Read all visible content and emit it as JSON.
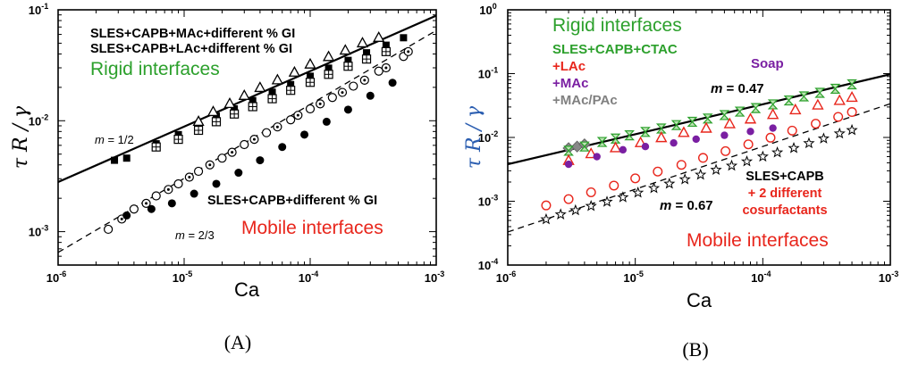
{
  "chart_data": [
    {
      "type": "scatter",
      "panel_label": "(A)",
      "xlabel": "Ca",
      "ylabel": "τ R / γ",
      "xscale": "log",
      "yscale": "log",
      "xlim": [
        1e-06,
        0.001
      ],
      "ylim": [
        0.0005,
        0.1
      ],
      "x_ticks": [
        {
          "base": "10",
          "exp": "-6",
          "value": 1e-06
        },
        {
          "base": "10",
          "exp": "-5",
          "value": 1e-05
        },
        {
          "base": "10",
          "exp": "-4",
          "value": 0.0001
        },
        {
          "base": "10",
          "exp": "-3",
          "value": 0.001
        }
      ],
      "y_ticks": [
        {
          "base": "10",
          "exp": "-3",
          "value": 0.001
        },
        {
          "base": "10",
          "exp": "-2",
          "value": 0.01
        },
        {
          "base": "10",
          "exp": "-1",
          "value": 0.1
        }
      ],
      "annotations": {
        "legend_line_1": "SLES+CAPB+MAc+different % GI",
        "legend_line_2": "SLES+CAPB+LAc+different % GI",
        "rigid": "Rigid interfaces",
        "mobile_series": "SLES+CAPB+different % GI",
        "mobile": "Mobile interfaces",
        "slope_rigid_m": "m",
        "slope_rigid_eq": "= 1/2",
        "slope_mobile_m": "m",
        "slope_mobile_eq": "= 2/3"
      },
      "lines": [
        {
          "label": "m = 1/2",
          "style": "solid",
          "slope": 0.5,
          "x_range": [
            1e-06,
            0.001
          ],
          "y_at_1e-6": 0.0028
        },
        {
          "label": "m = 2/3",
          "style": "dashed",
          "slope": 0.667,
          "x_range": [
            1e-06,
            0.001
          ],
          "y_at_1e-6": 0.00065
        }
      ],
      "series": [
        {
          "marker": "square-filled",
          "x": [
            2.8e-06,
            3.5e-06,
            6e-06,
            9e-06,
            1.3e-05,
            1.8e-05,
            2.5e-05,
            3.5e-05,
            5e-05,
            7e-05,
            0.0001,
            0.00014,
            0.0002,
            0.00028,
            0.0004,
            0.00055
          ],
          "y": [
            0.0044,
            0.0046,
            0.0062,
            0.0075,
            0.0091,
            0.011,
            0.0128,
            0.0152,
            0.0181,
            0.0212,
            0.0252,
            0.0298,
            0.035,
            0.041,
            0.048,
            0.056
          ]
        },
        {
          "marker": "square-open",
          "x": [
            6e-06,
            9e-06,
            1.3e-05,
            1.8e-05,
            2.5e-05,
            3.5e-05,
            5e-05,
            7e-05,
            0.0001,
            0.00014,
            0.0002,
            0.00028,
            0.0004
          ],
          "y": [
            0.0058,
            0.0068,
            0.0082,
            0.0098,
            0.0115,
            0.0134,
            0.0158,
            0.0188,
            0.0222,
            0.0262,
            0.031,
            0.036,
            0.042
          ]
        },
        {
          "marker": "triangle-open",
          "x": [
            1.3e-05,
            1.7e-05,
            2.3e-05,
            3e-05,
            4e-05,
            5.5e-05,
            7.5e-05,
            0.0001,
            0.00014,
            0.00019,
            0.00026,
            0.00035
          ],
          "y": [
            0.0098,
            0.012,
            0.0142,
            0.0168,
            0.0198,
            0.0232,
            0.0272,
            0.0322,
            0.0376,
            0.043,
            0.05,
            0.056
          ]
        },
        {
          "marker": "circle-open",
          "x": [
            2.5e-06,
            4e-06,
            6e-06,
            9e-06,
            1.3e-05,
            2e-05,
            3e-05,
            4.5e-05,
            7e-05,
            0.0001,
            0.00015,
            0.00022,
            0.00035,
            0.00055
          ],
          "y": [
            0.00105,
            0.0016,
            0.0021,
            0.0027,
            0.0035,
            0.0046,
            0.0061,
            0.0078,
            0.0102,
            0.0128,
            0.0162,
            0.0205,
            0.028,
            0.038
          ]
        },
        {
          "marker": "circle-dot",
          "x": [
            3.2e-06,
            5e-06,
            7.5e-06,
            1.1e-05,
            1.6e-05,
            2.4e-05,
            3.6e-05,
            5.5e-05,
            8e-05,
            0.00012,
            0.00018,
            0.00027,
            0.0004,
            0.0006
          ],
          "y": [
            0.0013,
            0.0018,
            0.0024,
            0.0031,
            0.004,
            0.0052,
            0.0068,
            0.0088,
            0.0112,
            0.0142,
            0.018,
            0.0232,
            0.03,
            0.042
          ]
        },
        {
          "marker": "circle-filled",
          "x": [
            3.5e-06,
            5.5e-06,
            8e-06,
            1.2e-05,
            1.8e-05,
            2.7e-05,
            4e-05,
            6e-05,
            9e-05,
            0.000135,
            0.0002,
            0.0003,
            0.00045
          ],
          "y": [
            0.0014,
            0.0016,
            0.0018,
            0.0022,
            0.0027,
            0.0034,
            0.0044,
            0.0058,
            0.0075,
            0.0098,
            0.0126,
            0.0168,
            0.022
          ]
        }
      ]
    },
    {
      "type": "scatter",
      "panel_label": "(B)",
      "xlabel": "Ca",
      "ylabel": "τ R / γ",
      "xscale": "log",
      "yscale": "log",
      "xlim": [
        1e-06,
        0.001
      ],
      "ylim": [
        0.0001,
        1
      ],
      "x_ticks": [
        {
          "base": "10",
          "exp": "-6",
          "value": 1e-06
        },
        {
          "base": "10",
          "exp": "-5",
          "value": 1e-05
        },
        {
          "base": "10",
          "exp": "-4",
          "value": 0.0001
        },
        {
          "base": "10",
          "exp": "-3",
          "value": 0.001
        }
      ],
      "y_ticks": [
        {
          "base": "10",
          "exp": "-4",
          "value": 0.0001
        },
        {
          "base": "10",
          "exp": "-3",
          "value": 0.001
        },
        {
          "base": "10",
          "exp": "-2",
          "value": 0.01
        },
        {
          "base": "10",
          "exp": "-1",
          "value": 0.1
        },
        {
          "base": "10",
          "exp": "0",
          "value": 1
        }
      ],
      "annotations": {
        "rigid": "Rigid interfaces",
        "mobile": "Mobile interfaces",
        "legend_ctac": "SLES+CAPB+CTAC",
        "legend_lac": "+LAc",
        "legend_mac": "+MAc",
        "legend_macpac": "+MAc/PAc",
        "legend_soap": "Soap",
        "slope_rigid_m": "m",
        "slope_rigid_eq": "= 0.47",
        "slope_mobile_m": "m",
        "slope_mobile_eq": "= 0.67",
        "mobile_series_1": "SLES+CAPB",
        "mobile_series_2": "+ 2 different",
        "mobile_series_3": "cosurfactants"
      },
      "colors": {
        "green": "#2ca02c",
        "red": "#e8261c",
        "purple": "#7a1fa2",
        "gray": "#808080",
        "black": "#000000"
      },
      "lines": [
        {
          "label": "m = 0.47",
          "style": "solid",
          "slope": 0.47,
          "x_range": [
            1e-06,
            0.001
          ],
          "y_at_1e-6": 0.0038
        },
        {
          "label": "m = 0.67",
          "style": "dashed",
          "slope": 0.67,
          "x_range": [
            1e-06,
            0.001
          ],
          "y_at_1e-6": 0.00033
        }
      ],
      "series": [
        {
          "marker": "gray-diamond",
          "x": [
            3e-06,
            3.5e-06,
            4e-06
          ],
          "y": [
            0.0068,
            0.0072,
            0.0078
          ]
        },
        {
          "marker": "green-hourglass",
          "x": [
            3e-06,
            4e-06,
            5.5e-06,
            7e-06,
            9e-06,
            1.2e-05,
            1.6e-05,
            2.1e-05,
            2.8e-05,
            3.7e-05,
            5e-05,
            6.6e-05,
            8.8e-05,
            0.00012,
            0.00016,
            0.00021,
            0.00028,
            0.00037,
            0.0005
          ],
          "y": [
            0.0062,
            0.0072,
            0.0085,
            0.0096,
            0.0108,
            0.0122,
            0.0138,
            0.0156,
            0.0176,
            0.0198,
            0.0224,
            0.0254,
            0.0288,
            0.033,
            0.038,
            0.044,
            0.05,
            0.058,
            0.068
          ]
        },
        {
          "marker": "red-triangle",
          "x": [
            3e-06,
            4.5e-06,
            7e-06,
            1.1e-05,
            1.6e-05,
            2.4e-05,
            3.6e-05,
            5.5e-05,
            8e-05,
            0.00012,
            0.00018,
            0.00027,
            0.0004,
            0.0005
          ],
          "y": [
            0.0043,
            0.0055,
            0.0068,
            0.0082,
            0.0098,
            0.0118,
            0.0138,
            0.0162,
            0.0192,
            0.0226,
            0.0268,
            0.0318,
            0.0375,
            0.042
          ]
        },
        {
          "marker": "purple-circle",
          "x": [
            3e-06,
            5e-06,
            8e-06,
            1.2e-05,
            2e-05,
            3e-05,
            5e-05,
            8e-05,
            0.00012
          ],
          "y": [
            0.0038,
            0.005,
            0.0064,
            0.0072,
            0.0082,
            0.0094,
            0.0108,
            0.0124,
            0.014
          ]
        },
        {
          "marker": "red-circle",
          "x": [
            2e-06,
            3e-06,
            4.5e-06,
            6.8e-06,
            1e-05,
            1.5e-05,
            2.3e-05,
            3.4e-05,
            5.1e-05,
            7.7e-05,
            0.000115,
            0.00017,
            0.00026,
            0.00039,
            0.0005
          ],
          "y": [
            0.00086,
            0.00108,
            0.00138,
            0.00176,
            0.00228,
            0.00292,
            0.00372,
            0.00478,
            0.0061,
            0.0078,
            0.0099,
            0.0128,
            0.0164,
            0.021,
            0.025
          ]
        },
        {
          "marker": "star",
          "x": [
            2e-06,
            2.6e-06,
            3.4e-06,
            4.5e-06,
            6e-06,
            8e-06,
            1.05e-05,
            1.4e-05,
            1.85e-05,
            2.45e-05,
            3.25e-05,
            4.3e-05,
            5.7e-05,
            7.5e-05,
            0.0001,
            0.00013,
            0.000175,
            0.00023,
            0.0003,
            0.0004,
            0.0005
          ],
          "y": [
            0.00052,
            0.00062,
            0.00072,
            0.00084,
            0.00098,
            0.00115,
            0.00136,
            0.0016,
            0.00188,
            0.0022,
            0.0026,
            0.0031,
            0.0036,
            0.0042,
            0.005,
            0.0058,
            0.0068,
            0.0081,
            0.0096,
            0.0115,
            0.013
          ]
        }
      ]
    }
  ]
}
